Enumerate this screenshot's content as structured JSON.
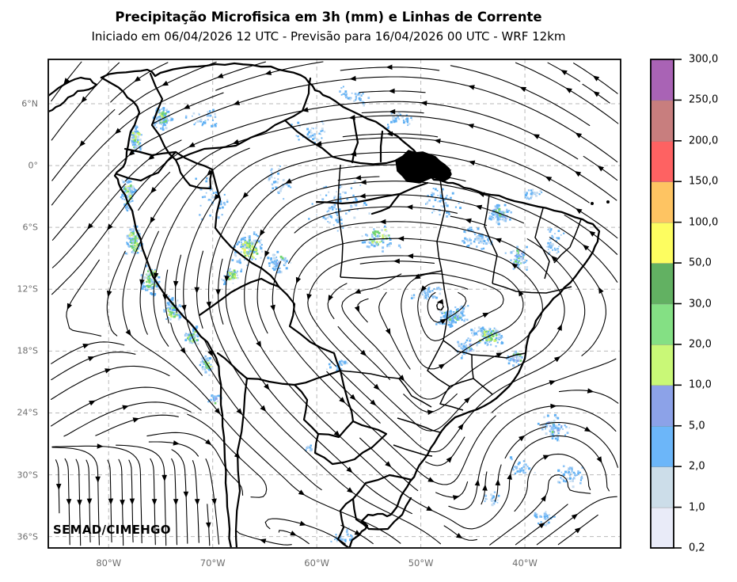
{
  "header": {
    "title": "Precipitação Microfisica em 3h (mm) e Linhas de Corrente",
    "subtitle": "Iniciado em 06/04/2026 12 UTC - Previsão para 16/04/2026 00 UTC - WRF 12km"
  },
  "watermark": "SEMAD/CIMEHGO",
  "chart_data": {
    "type": "map-streamlines-precipitation",
    "model": "WRF 12km",
    "valid_interval": "3h",
    "lon_range": [
      -85.8,
      -30.8
    ],
    "lat_range": [
      -37.1,
      10.3
    ],
    "grid": {
      "dashed": true,
      "color": "#b9b9b9"
    },
    "x_ticks": [
      {
        "lon": -80,
        "label": "80°W"
      },
      {
        "lon": -70,
        "label": "70°W"
      },
      {
        "lon": -60,
        "label": "60°W"
      },
      {
        "lon": -50,
        "label": "50°W"
      },
      {
        "lon": -40,
        "label": "40°W"
      }
    ],
    "y_ticks": [
      {
        "lat": 6,
        "label": "6°N"
      },
      {
        "lat": 0,
        "label": "0°"
      },
      {
        "lat": -6,
        "label": "6°S"
      },
      {
        "lat": -12,
        "label": "12°S"
      },
      {
        "lat": -18,
        "label": "18°S"
      },
      {
        "lat": -24,
        "label": "24°S"
      },
      {
        "lat": -30,
        "label": "30°S"
      },
      {
        "lat": -36,
        "label": "36°S"
      }
    ],
    "colorbar": {
      "units": "mm",
      "levels_mm": [
        0.2,
        1,
        2,
        5,
        10,
        20,
        30,
        50,
        100,
        150,
        200,
        250,
        300
      ],
      "tick_labels": [
        "0,2",
        "1,0",
        "2,0",
        "5,0",
        "10,0",
        "20,0",
        "30,0",
        "50,0",
        "100,0",
        "150,0",
        "200,0",
        "250,0",
        "300,0"
      ],
      "colors": [
        "#e9ebf8",
        "#ccdde9",
        "#6cb6f9",
        "#8ca2e8",
        "#c9f877",
        "#84e084",
        "#62b162",
        "#fdfd60",
        "#fec462",
        "#fe6262",
        "#c87e7e",
        "#a963b5"
      ]
    },
    "precip_palette": {
      "light": "#c7ddf1",
      "mid": "#8fc4f6",
      "blue": "#5fb0f4",
      "lavender": "#8ca2e8",
      "green": "#6fd46f",
      "lime": "#cdf36f",
      "yellow": "#f7f75c"
    },
    "cluster_fields": [
      "lon",
      "lat",
      "rx_deg",
      "ry_deg",
      "n_dots",
      "max_mm"
    ],
    "precip_clusters": [
      [
        -74.85,
        4.69,
        1.1,
        1.4,
        120,
        30
      ],
      [
        -71.05,
        4.54,
        1.9,
        1.4,
        35,
        5
      ],
      [
        -77.36,
        2.39,
        0.8,
        1.7,
        85,
        20
      ],
      [
        -78.12,
        -2.76,
        0.85,
        2.3,
        115,
        30
      ],
      [
        -77.51,
        -7.37,
        1.0,
        2.15,
        115,
        30
      ],
      [
        -75.84,
        -10.98,
        1.15,
        1.85,
        100,
        30
      ],
      [
        -73.86,
        -14.05,
        1.2,
        1.55,
        95,
        30
      ],
      [
        -71.96,
        -16.58,
        1.0,
        1.25,
        70,
        20
      ],
      [
        -70.51,
        -19.42,
        0.85,
        1.1,
        50,
        20
      ],
      [
        -69.75,
        -22.73,
        0.7,
        0.9,
        25,
        10
      ],
      [
        -69.9,
        -3.14,
        1.9,
        2.7,
        45,
        5
      ],
      [
        -66.41,
        -8.06,
        1.85,
        2.0,
        160,
        100
      ],
      [
        -68.16,
        -10.59,
        1.1,
        1.1,
        60,
        50
      ],
      [
        -63.82,
        -9.29,
        1.5,
        1.4,
        60,
        10
      ],
      [
        -57.73,
        -3.91,
        3.4,
        3.1,
        90,
        5
      ],
      [
        -54.08,
        -6.98,
        2.3,
        1.7,
        85,
        20
      ],
      [
        -60.77,
        3.16,
        2.4,
        1.25,
        45,
        5
      ],
      [
        -63.82,
        -1.6,
        1.9,
        1.9,
        40,
        5
      ],
      [
        -51.65,
        4.54,
        1.9,
        1.1,
        35,
        5
      ],
      [
        -56.59,
        6.84,
        2.65,
        1.15,
        40,
        5
      ],
      [
        -47.85,
        -3.53,
        2.3,
        1.9,
        55,
        5
      ],
      [
        -42.37,
        -4.68,
        1.5,
        1.15,
        115,
        10
      ],
      [
        -44.8,
        -6.98,
        2.0,
        1.55,
        85,
        5
      ],
      [
        -40.62,
        -8.9,
        1.35,
        1.7,
        70,
        10
      ],
      [
        -37.2,
        -7.37,
        1.2,
        2.0,
        45,
        5
      ],
      [
        -39.33,
        -2.76,
        1.15,
        0.8,
        30,
        5
      ],
      [
        -46.93,
        -14.66,
        2.0,
        1.3,
        130,
        10
      ],
      [
        -43.58,
        -16.51,
        2.0,
        1.3,
        135,
        20
      ],
      [
        -45.71,
        -17.58,
        1.35,
        0.9,
        60,
        10
      ],
      [
        -40.85,
        -18.66,
        1.2,
        1.0,
        55,
        10
      ],
      [
        -49.37,
        -12.36,
        1.65,
        1.25,
        50,
        5
      ],
      [
        -57.73,
        -19.42,
        1.9,
        0.9,
        30,
        5
      ],
      [
        -37.2,
        -25.42,
        2.1,
        1.7,
        90,
        10
      ],
      [
        -35.83,
        -30.03,
        1.9,
        1.4,
        60,
        5
      ],
      [
        -40.24,
        -29.26,
        1.35,
        1.1,
        40,
        5
      ],
      [
        -43.13,
        -32.18,
        1.05,
        0.75,
        25,
        5
      ],
      [
        -38.11,
        -34.25,
        1.5,
        0.75,
        35,
        5
      ],
      [
        -57.58,
        -36.17,
        1.8,
        0.7,
        35,
        5
      ],
      [
        -60.93,
        -27.41,
        0.75,
        0.6,
        12,
        5
      ]
    ],
    "flow_features": [
      "southeast trade winds over the tropical Atlantic turning west-northwest over northern Brazil",
      "flow channeled southward along the Andes turning southeast over Bolivia and Paraguay",
      "northward coastal flow along eastern Brazil wrapping around an anticyclonic arch over the South Atlantic",
      "northeastward flow over the southeast Pacific diverging to southerlies along the Chilean coast"
    ]
  }
}
